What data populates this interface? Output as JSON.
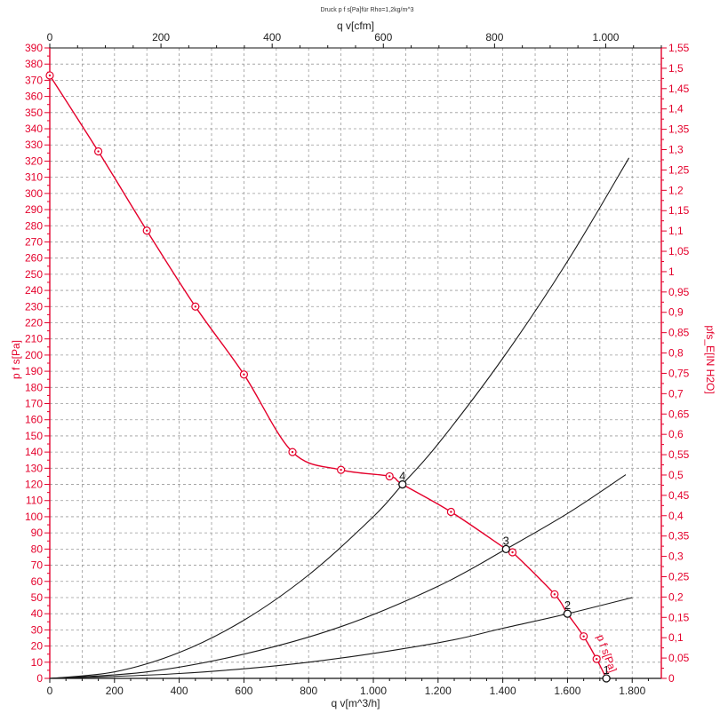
{
  "chart_data": {
    "type": "line",
    "title": "Druck p f s[Pa]für Rho=1,2kg/m^3",
    "x_top": {
      "label": "q v[cfm]",
      "lim": [
        0,
        1100
      ],
      "ticks": [
        0,
        200,
        400,
        600,
        800,
        1000
      ],
      "tick_labels": [
        "0",
        "200",
        "400",
        "600",
        "800",
        "1.000"
      ]
    },
    "x_bottom": {
      "label": "q v[m^3/h]",
      "lim": [
        0,
        1890
      ],
      "ticks": [
        0,
        200,
        400,
        600,
        800,
        1000,
        1200,
        1400,
        1600,
        1800
      ],
      "tick_labels": [
        "0",
        "200",
        "400",
        "600",
        "800",
        "1.000",
        "1.200",
        "1.400",
        "1.600",
        "1.800"
      ]
    },
    "y_left": {
      "label": "p f s[Pa]",
      "lim": [
        0,
        390
      ],
      "step": 10
    },
    "y_right": {
      "label": "pfs_E[IN H2O]",
      "lim": [
        0,
        1.55
      ],
      "step": 0.05
    },
    "curve_label": "p f s[Pa]",
    "grid": true,
    "colors": {
      "fan_curve": "#e4002b",
      "system_curves": "#1a1a1a",
      "grid": "#9a9a9a"
    },
    "series": [
      {
        "points": [
          [
            0,
            373
          ],
          [
            150,
            326
          ],
          [
            300,
            277
          ],
          [
            450,
            230
          ],
          [
            600,
            188
          ],
          [
            750,
            140
          ],
          [
            900,
            129
          ],
          [
            1050,
            125
          ],
          [
            1090,
            120
          ],
          [
            1240,
            103
          ],
          [
            1410,
            80
          ],
          [
            1430,
            78
          ],
          [
            1560,
            52
          ],
          [
            1600,
            40
          ],
          [
            1650,
            26
          ],
          [
            1690,
            12
          ],
          [
            1720,
            0
          ]
        ]
      },
      {
        "points": [
          [
            0,
            0
          ],
          [
            200,
            4
          ],
          [
            400,
            16
          ],
          [
            600,
            36
          ],
          [
            800,
            64
          ],
          [
            1000,
            100
          ],
          [
            1090,
            120
          ],
          [
            1200,
            145
          ],
          [
            1400,
            198
          ],
          [
            1600,
            258
          ],
          [
            1790,
            322
          ]
        ]
      },
      {
        "points": [
          [
            0,
            0
          ],
          [
            300,
            4
          ],
          [
            600,
            15
          ],
          [
            900,
            32
          ],
          [
            1200,
            57
          ],
          [
            1410,
            80
          ],
          [
            1600,
            102
          ],
          [
            1780,
            126
          ]
        ]
      },
      {
        "points": [
          [
            0,
            0
          ],
          [
            400,
            3
          ],
          [
            800,
            10
          ],
          [
            1200,
            22
          ],
          [
            1400,
            31
          ],
          [
            1600,
            40
          ],
          [
            1800,
            50
          ]
        ]
      }
    ],
    "operating_points": [
      {
        "label": "4",
        "x": 1090,
        "y": 120
      },
      {
        "label": "3",
        "x": 1410,
        "y": 80
      },
      {
        "label": "2",
        "x": 1600,
        "y": 40
      },
      {
        "label": "1",
        "x": 1720,
        "y": 0
      }
    ],
    "fan_markers": [
      [
        0,
        373
      ],
      [
        150,
        326
      ],
      [
        300,
        277
      ],
      [
        450,
        230
      ],
      [
        600,
        188
      ],
      [
        750,
        140
      ],
      [
        900,
        129
      ],
      [
        1050,
        125
      ],
      [
        1240,
        103
      ],
      [
        1430,
        78
      ],
      [
        1560,
        52
      ],
      [
        1650,
        26
      ],
      [
        1690,
        12
      ]
    ]
  }
}
